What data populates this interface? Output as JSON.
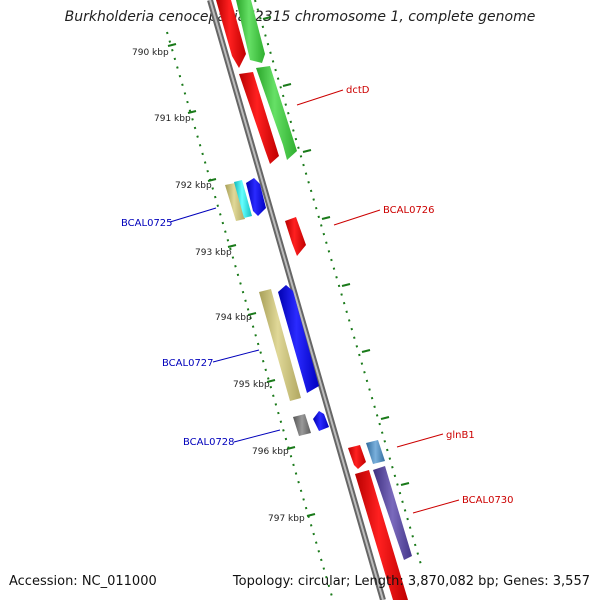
{
  "title": "Burkholderia cenocepacia J2315 chromosome 1, complete genome",
  "footer": {
    "accession": "Accession: NC_011000",
    "summary": "Topology: circular; Length: 3,870,082 bp; Genes: 3,557"
  },
  "scale_labels": [
    "790 kbp",
    "791 kbp",
    "792 kbp",
    "793 kbp",
    "794 kbp",
    "795 kbp",
    "796 kbp",
    "797 kbp"
  ],
  "gene_labels": {
    "dctD": "dctD",
    "BCAL0726": "BCAL0726",
    "BCAL0725": "BCAL0725",
    "BCAL0727": "BCAL0727",
    "BCAL0728": "BCAL0728",
    "glnB1": "glnB1",
    "BCAL0730": "BCAL0730"
  },
  "colors": {
    "forward_label": "#cc0000",
    "reverse_label": "#0000bb",
    "tick": "#1a7a1a",
    "backbone": "#888888",
    "red": "#ee0000",
    "green": "#44cc44",
    "blue": "#1a1aee",
    "khaki": "#c8bf78",
    "cyan": "#22dddd",
    "gray": "#777777",
    "steelblue": "#4a86b8",
    "purple": "#5a4a9a"
  }
}
